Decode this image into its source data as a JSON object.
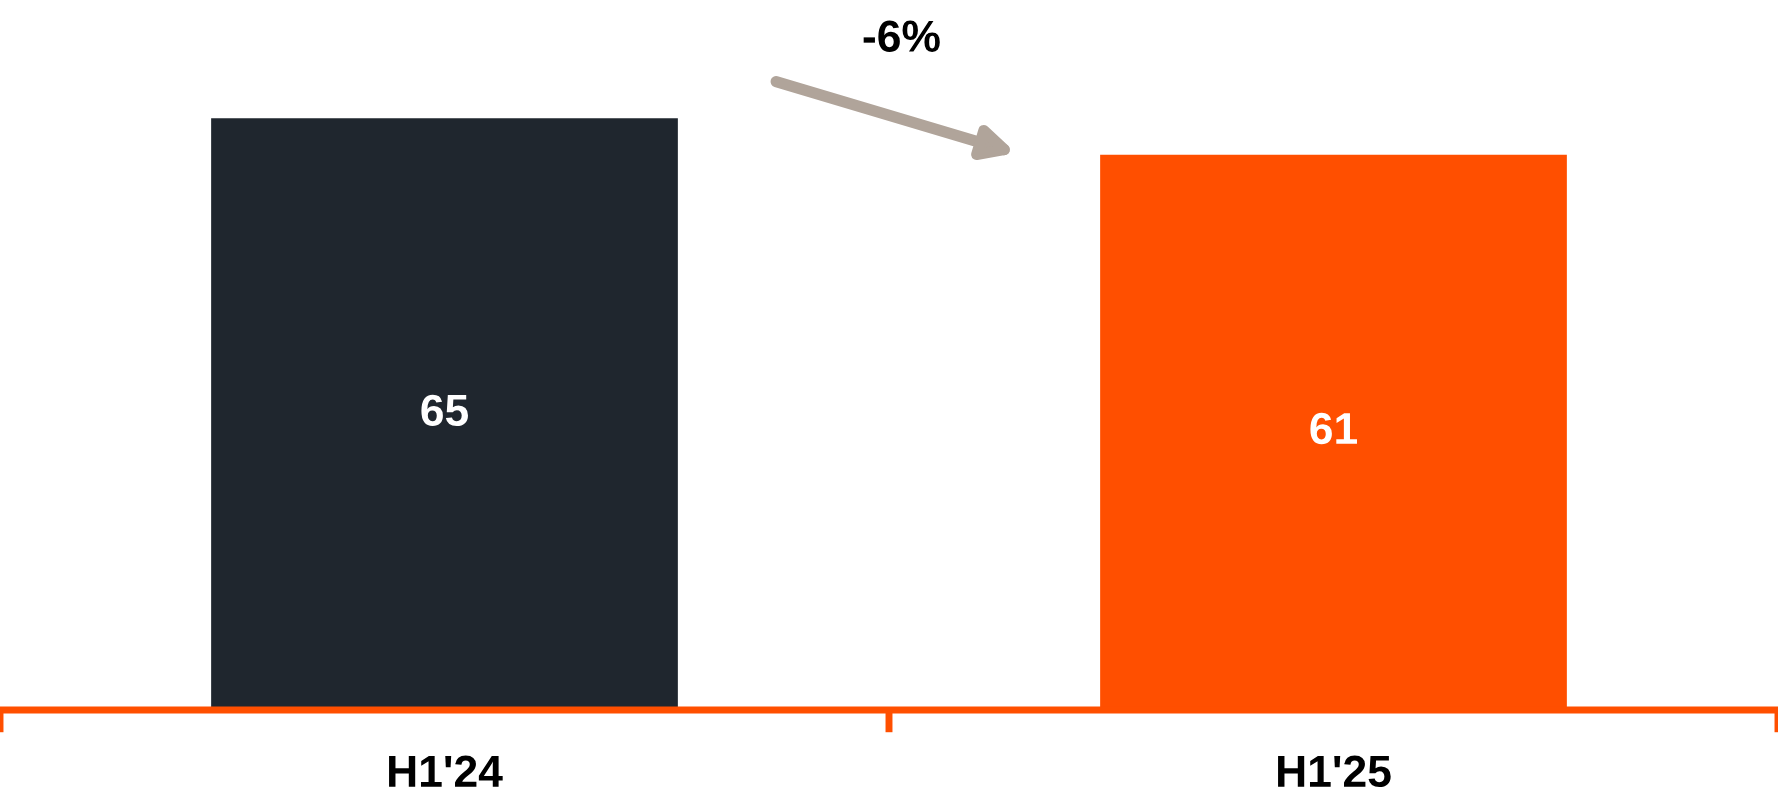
{
  "chart_data": {
    "type": "bar",
    "categories": [
      "H1'24",
      "H1'25"
    ],
    "values": [
      65,
      61
    ],
    "colors": [
      "#1f262e",
      "#ff4f00"
    ],
    "data_labels": true,
    "grid": false,
    "tick_labels": "x",
    "annotations": [
      "-6%"
    ]
  }
}
